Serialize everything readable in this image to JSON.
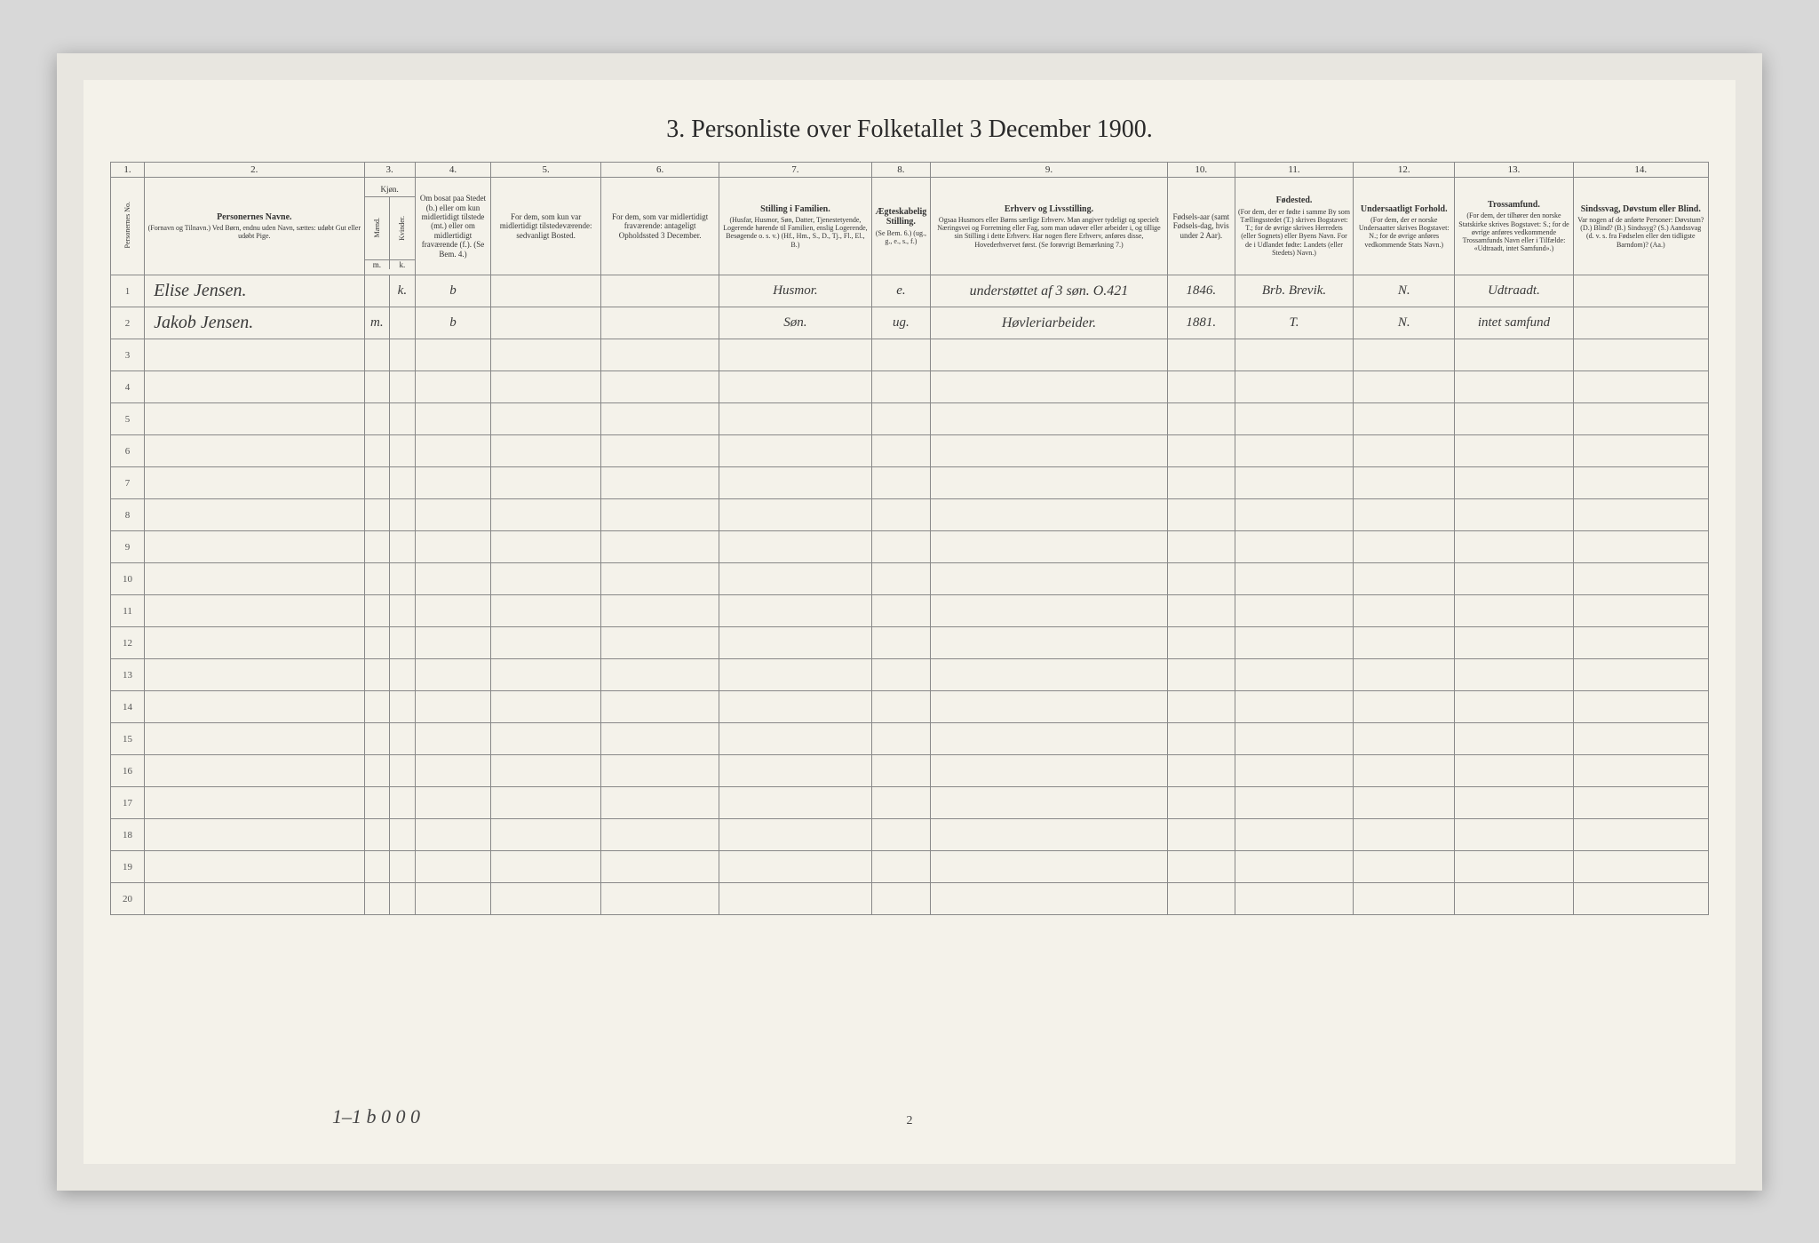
{
  "title": "3. Personliste over Folketallet 3 December 1900.",
  "colnums": [
    "1.",
    "2.",
    "3.",
    "4.",
    "5.",
    "6.",
    "7.",
    "8.",
    "9.",
    "10.",
    "11.",
    "12.",
    "13.",
    "14."
  ],
  "headers": {
    "h1": "Personernes No.",
    "h2_bold": "Personernes Navne.",
    "h2_sub": "(Fornavn og Tilnavn.)\nVed Børn, endnu uden Navn, sættes: udøbt Gut eller udøbt Pige.",
    "h3_top": "Kjøn.",
    "h3_m": "Mænd.",
    "h3_k": "Kvinder.",
    "h3_foot_m": "m.",
    "h3_foot_k": "k.",
    "h4": "Om bosat paa Stedet (b.) eller om kun midlertidigt tilstede (mt.) eller om midlertidigt fraværende (f.).\n(Se Bem. 4.)",
    "h5": "For dem, som kun var midlertidigt tilstedeværende:\nsedvanligt Bosted.",
    "h6": "For dem, som var midlertidigt fraværende:\nantageligt Opholdssted 3 December.",
    "h7_bold": "Stilling i Familien.",
    "h7_sub": "(Husfar, Husmor, Søn, Datter, Tjenestetyende, Logerende hørende til Familien, enslig Logerende, Besøgende o. s. v.)\n(Hf., Hm., S., D., Tj., Fl., El., B.)",
    "h8_bold": "Ægteskabelig Stilling.",
    "h8_sub": "(Se Bem. 6.)\n(ug., g., e., s., f.)",
    "h9_bold": "Erhverv og Livsstilling.",
    "h9_sub": "Ogsaa Husmors eller Børns særlige Erhverv. Man angiver tydeligt og specielt Næringsvei og Forretning eller Fag, som man udøver eller arbeider i, og tillige sin Stilling i dette Erhverv. Har nogen flere Erhverv, anføres disse, Hovederhvervet først.\n(Se forøvrigt Bemærkning 7.)",
    "h10": "Fødsels-aar (samt Fødsels-dag, hvis under 2 Aar).",
    "h11_bold": "Fødested.",
    "h11_sub": "(For dem, der er fødte i samme By som Tællingsstedet (T.) skrives Bogstavet: T.; for de øvrige skrives Herredets (eller Sognets) eller Byens Navn. For de i Udlandet fødte: Landets (eller Stedets) Navn.)",
    "h12_bold": "Undersaatligt Forhold.",
    "h12_sub": "(For dem, der er norske Undersaatter skrives Bogstavet: N.; for de øvrige anføres vedkommende Stats Navn.)",
    "h13_bold": "Trossamfund.",
    "h13_sub": "(For dem, der tilhører den norske Statskirke skrives Bogstavet: S.; for de øvrige anføres vedkommende Trossamfunds Navn eller i Tilfælde: «Udtraadt, intet Samfund».)",
    "h14_bold": "Sindssvag, Døvstum eller Blind.",
    "h14_sub": "Var nogen af de anførte Personer:\nDøvstum? (D.)\nBlind? (B.)\nSindssyg? (S.)\nAandssvag (d. v. s. fra Fødselen eller den tidligste Barndom)? (Aa.)"
  },
  "rows": [
    {
      "num": "1",
      "name": "Elise Jensen.",
      "m": "",
      "k": "k.",
      "c4": "b",
      "c5": "",
      "c6": "",
      "c7": "Husmor.",
      "c8": "e.",
      "c9": "understøttet af 3 søn. O.421",
      "c10": "1846.",
      "c11": "Brb. Brevik.",
      "c12": "N.",
      "c13": "Udtraadt.",
      "c14": ""
    },
    {
      "num": "2",
      "name": "Jakob Jensen.",
      "m": "m.",
      "k": "",
      "c4": "b",
      "c5": "",
      "c6": "",
      "c7": "Søn.",
      "c8": "ug.",
      "c9": "Høvleriarbeider.",
      "c10": "1881.",
      "c11": "T.",
      "c12": "N.",
      "c13": "intet samfund",
      "c14": ""
    }
  ],
  "empty_rows": [
    "3",
    "4",
    "5",
    "6",
    "7",
    "8",
    "9",
    "10",
    "11",
    "12",
    "13",
    "14",
    "15",
    "16",
    "17",
    "18",
    "19",
    "20"
  ],
  "footer_marks": "1–1   b 0    0 0",
  "page_number": "2",
  "colors": {
    "page_bg": "#f4f2ea",
    "outer_bg": "#e8e6e0",
    "body_bg": "#d8d8d8",
    "border": "#888",
    "text": "#333",
    "handwriting": "#3a3a3a"
  },
  "fonts": {
    "title_size": 28,
    "header_size": 9,
    "handwriting_size": 20,
    "rownum_size": 11
  }
}
